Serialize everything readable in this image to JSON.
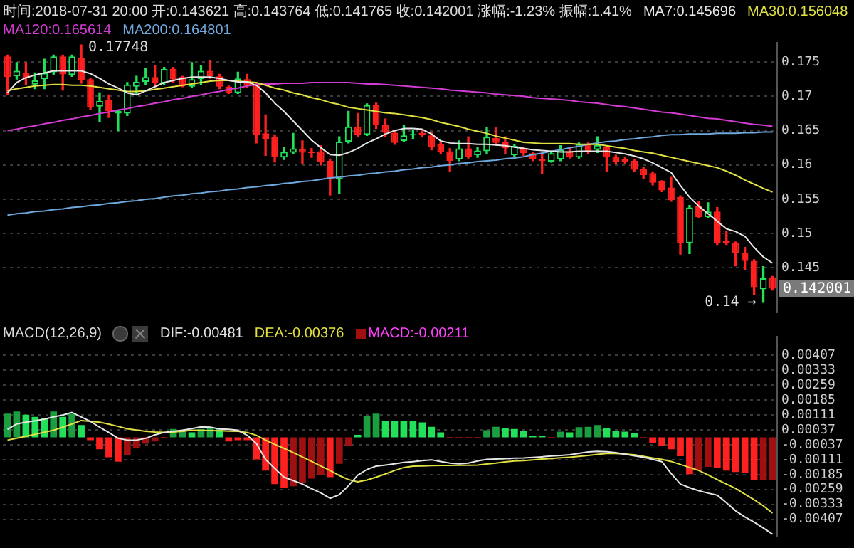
{
  "chart_data": [
    {
      "type": "candlestick",
      "title": "时间:2018-07-31 20:00 开:0.143621 高:0.143764 低:0.141765 收:0.142001 涨幅:-1.23% 振幅:1.41%",
      "categories": [
        null,
        null,
        null,
        null,
        null,
        null,
        null,
        null,
        null,
        null,
        null,
        null,
        null,
        null,
        null,
        null,
        null,
        null,
        null,
        null,
        null,
        null,
        null,
        null,
        null,
        null,
        null,
        null,
        null,
        null,
        null,
        null,
        null,
        null,
        null,
        null,
        null,
        null,
        null,
        null,
        null,
        null,
        null,
        null,
        null,
        null,
        null,
        null,
        null,
        null,
        null,
        null,
        null,
        null,
        null,
        null,
        null,
        null,
        null,
        null,
        null,
        null,
        null,
        null,
        null,
        null,
        null,
        null,
        null,
        null,
        null,
        null,
        null,
        null,
        null,
        null,
        null,
        null,
        null,
        null,
        null,
        null,
        null,
        null
      ],
      "ohlc": [
        [
          0.1758,
          0.176,
          0.1702,
          0.1728
        ],
        [
          0.1729,
          0.1749,
          0.1725,
          0.1737
        ],
        [
          0.1734,
          0.1749,
          0.1717,
          0.1726
        ],
        [
          0.1717,
          0.1734,
          0.1711,
          0.1723
        ],
        [
          0.1725,
          0.1754,
          0.1711,
          0.1734
        ],
        [
          0.1735,
          0.176,
          0.1731,
          0.1758
        ],
        [
          0.1758,
          0.176,
          0.1709,
          0.1732
        ],
        [
          0.1731,
          0.176,
          0.1729,
          0.1758
        ],
        [
          0.1756,
          0.17748,
          0.1719,
          0.1723
        ],
        [
          0.1725,
          0.1726,
          0.1681,
          0.1684
        ],
        [
          0.1685,
          0.1705,
          0.1663,
          0.1693
        ],
        [
          0.1695,
          0.1702,
          0.1669,
          0.1678
        ],
        [
          0.1675,
          0.168,
          0.165,
          0.1679
        ],
        [
          0.1675,
          0.172,
          0.1672,
          0.1717
        ],
        [
          0.1714,
          0.1729,
          0.1702,
          0.1721
        ],
        [
          0.1721,
          0.174,
          0.1717,
          0.1728
        ],
        [
          0.1728,
          0.1745,
          0.1714,
          0.172
        ],
        [
          0.1719,
          0.1742,
          0.1717,
          0.174
        ],
        [
          0.174,
          0.1742,
          0.172,
          0.1725
        ],
        [
          0.1728,
          0.1729,
          0.1714,
          0.1715
        ],
        [
          0.1714,
          0.1749,
          0.1713,
          0.1725
        ],
        [
          0.1725,
          0.1745,
          0.1717,
          0.1737
        ],
        [
          0.1737,
          0.1752,
          0.1726,
          0.1729
        ],
        [
          0.1729,
          0.1732,
          0.1711,
          0.1714
        ],
        [
          0.1714,
          0.1715,
          0.1704,
          0.1705
        ],
        [
          0.1705,
          0.1735,
          0.1704,
          0.1726
        ],
        [
          0.1725,
          0.1732,
          0.1713,
          0.1715
        ],
        [
          0.1717,
          0.1719,
          0.1632,
          0.1644
        ],
        [
          0.1646,
          0.1673,
          0.1614,
          0.1638
        ],
        [
          0.1641,
          0.1644,
          0.1604,
          0.1611
        ],
        [
          0.1611,
          0.1626,
          0.1608,
          0.1619
        ],
        [
          0.1618,
          0.1646,
          0.1617,
          0.1624
        ],
        [
          0.1623,
          0.1635,
          0.1602,
          0.1618
        ],
        [
          0.1619,
          0.1624,
          0.1611,
          0.1617
        ],
        [
          0.162,
          0.1628,
          0.16,
          0.1605
        ],
        [
          0.1606,
          0.1608,
          0.1556,
          0.1579
        ],
        [
          0.1579,
          0.1641,
          0.1559,
          0.1634
        ],
        [
          0.1634,
          0.1678,
          0.1632,
          0.1656
        ],
        [
          0.1656,
          0.1675,
          0.1641,
          0.1644
        ],
        [
          0.1644,
          0.1689,
          0.1643,
          0.1687
        ],
        [
          0.1687,
          0.169,
          0.1653,
          0.1658
        ],
        [
          0.1658,
          0.1667,
          0.1641,
          0.1647
        ],
        [
          0.1647,
          0.165,
          0.163,
          0.1632
        ],
        [
          0.1635,
          0.1658,
          0.1634,
          0.1643
        ],
        [
          0.1643,
          0.165,
          0.1638,
          0.1645
        ],
        [
          0.1647,
          0.165,
          0.1641,
          0.1643
        ],
        [
          0.1643,
          0.1647,
          0.1622,
          0.1626
        ],
        [
          0.163,
          0.1634,
          0.1617,
          0.1619
        ],
        [
          0.162,
          0.1624,
          0.159,
          0.1606
        ],
        [
          0.1608,
          0.1635,
          0.1606,
          0.1624
        ],
        [
          0.1624,
          0.1641,
          0.161,
          0.1612
        ],
        [
          0.1614,
          0.1626,
          0.1611,
          0.1621
        ],
        [
          0.162,
          0.1655,
          0.1617,
          0.1641
        ],
        [
          0.1639,
          0.1655,
          0.1629,
          0.1632
        ],
        [
          0.1634,
          0.1641,
          0.1617,
          0.1624
        ],
        [
          0.1614,
          0.163,
          0.1612,
          0.1628
        ],
        [
          0.1624,
          0.1626,
          0.1614,
          0.1617
        ],
        [
          0.1617,
          0.1618,
          0.1606,
          0.1608
        ],
        [
          0.1609,
          0.1618,
          0.1587,
          0.1606
        ],
        [
          0.1605,
          0.1618,
          0.1604,
          0.1617
        ],
        [
          0.1608,
          0.1628,
          0.1606,
          0.1622
        ],
        [
          0.162,
          0.1624,
          0.161,
          0.1611
        ],
        [
          0.1611,
          0.1632,
          0.161,
          0.163
        ],
        [
          0.163,
          0.1632,
          0.1617,
          0.162
        ],
        [
          0.1622,
          0.1641,
          0.1618,
          0.1629
        ],
        [
          0.1626,
          0.1628,
          0.159,
          0.1611
        ],
        [
          0.1612,
          0.1614,
          0.1602,
          0.1605
        ],
        [
          0.1608,
          0.1611,
          0.1602,
          0.1604
        ],
        [
          0.1606,
          0.1608,
          0.159,
          0.1593
        ],
        [
          0.1594,
          0.1596,
          0.158,
          0.1585
        ],
        [
          0.1588,
          0.159,
          0.1571,
          0.1574
        ],
        [
          0.1576,
          0.1577,
          0.1561,
          0.1563
        ],
        [
          0.1567,
          0.1582,
          0.1547,
          0.1549
        ],
        [
          0.1553,
          0.1555,
          0.147,
          0.1486
        ],
        [
          0.1486,
          0.1541,
          0.1471,
          0.1538
        ],
        [
          0.1541,
          0.1547,
          0.1523,
          0.1524
        ],
        [
          0.1524,
          0.1545,
          0.1523,
          0.1532
        ],
        [
          0.1532,
          0.1538,
          0.1484,
          0.1486
        ],
        [
          0.149,
          0.1503,
          0.1484,
          0.1486
        ],
        [
          0.1486,
          0.1488,
          0.1453,
          0.1472
        ],
        [
          0.1472,
          0.148,
          0.1447,
          0.146
        ],
        [
          0.146,
          0.1462,
          0.1411,
          0.1422
        ],
        [
          0.1419,
          0.1452,
          0.14,
          0.1435
        ],
        [
          0.143621,
          0.143764,
          0.141765,
          0.142001
        ]
      ],
      "series": [
        {
          "type": "line",
          "name": "MA7:0.145696",
          "color": "#e6e6e6",
          "values": [
            0.1705,
            0.172,
            0.1727,
            0.1731,
            0.1734,
            0.1737,
            0.1737,
            0.1737,
            0.1737,
            0.1733,
            0.1726,
            0.1718,
            0.1712,
            0.1705,
            0.1702,
            0.1708,
            0.1714,
            0.172,
            0.1723,
            0.1726,
            0.1728,
            0.1728,
            0.1728,
            0.1726,
            0.1723,
            0.1721,
            0.1721,
            0.1716,
            0.1705,
            0.169,
            0.1678,
            0.1664,
            0.165,
            0.1636,
            0.1625,
            0.1615,
            0.1614,
            0.1618,
            0.1624,
            0.1632,
            0.1638,
            0.1645,
            0.165,
            0.1653,
            0.1653,
            0.1652,
            0.1645,
            0.1635,
            0.1632,
            0.1631,
            0.1631,
            0.163,
            0.163,
            0.1629,
            0.1628,
            0.1626,
            0.1624,
            0.1622,
            0.1621,
            0.162,
            0.1619,
            0.1619,
            0.162,
            0.162,
            0.162,
            0.162,
            0.1618,
            0.1616,
            0.1613,
            0.1609,
            0.1603,
            0.1596,
            0.1589,
            0.157,
            0.1553,
            0.154,
            0.1529,
            0.1518,
            0.1507,
            0.1503,
            0.1496,
            0.148,
            0.1466,
            0.145696
          ]
        },
        {
          "type": "line",
          "name": "MA30:0.156048",
          "color": "#e0e040",
          "values": [
            0.1708,
            0.1711,
            0.1713,
            0.1715,
            0.1716,
            0.1717,
            0.1717,
            0.1716,
            0.1716,
            0.1715,
            0.1713,
            0.1711,
            0.1709,
            0.1707,
            0.1707,
            0.1708,
            0.171,
            0.1712,
            0.1714,
            0.1716,
            0.1718,
            0.172,
            0.1722,
            0.1723,
            0.1723,
            0.1722,
            0.1721,
            0.172,
            0.1716,
            0.1712,
            0.1709,
            0.1705,
            0.1702,
            0.1698,
            0.1695,
            0.1691,
            0.1688,
            0.1684,
            0.1682,
            0.168,
            0.1678,
            0.1676,
            0.1675,
            0.1673,
            0.1671,
            0.1669,
            0.1666,
            0.1662,
            0.1659,
            0.1656,
            0.1652,
            0.1649,
            0.1646,
            0.1642,
            0.1639,
            0.1636,
            0.1633,
            0.1632,
            0.1631,
            0.1631,
            0.1631,
            0.1631,
            0.163,
            0.163,
            0.163,
            0.1628,
            0.1626,
            0.1624,
            0.1621,
            0.1619,
            0.1617,
            0.1614,
            0.1611,
            0.1608,
            0.1605,
            0.1602,
            0.1599,
            0.1596,
            0.1591,
            0.1585,
            0.1578,
            0.1572,
            0.1566,
            0.156048
          ]
        },
        {
          "type": "line",
          "name": "MA120:0.165614",
          "color": "#d23cd2",
          "values": [
            0.165,
            0.1652,
            0.1655,
            0.1657,
            0.166,
            0.1662,
            0.1665,
            0.1667,
            0.167,
            0.1672,
            0.1675,
            0.1677,
            0.168,
            0.1682,
            0.1685,
            0.1687,
            0.169,
            0.1692,
            0.1695,
            0.1697,
            0.17,
            0.1702,
            0.1705,
            0.1707,
            0.171,
            0.1712,
            0.1715,
            0.1717,
            0.1718,
            0.1718,
            0.1719,
            0.1719,
            0.1719,
            0.172,
            0.172,
            0.172,
            0.172,
            0.172,
            0.1719,
            0.1718,
            0.1718,
            0.1717,
            0.1716,
            0.1715,
            0.1714,
            0.1713,
            0.1712,
            0.1711,
            0.1709,
            0.1708,
            0.1707,
            0.1706,
            0.1705,
            0.1703,
            0.1702,
            0.1701,
            0.17,
            0.1698,
            0.1697,
            0.1696,
            0.1695,
            0.1694,
            0.1692,
            0.1691,
            0.169,
            0.1688,
            0.1686,
            0.1685,
            0.1683,
            0.1681,
            0.1679,
            0.1677,
            0.1676,
            0.1674,
            0.1672,
            0.167,
            0.1668,
            0.1667,
            0.1665,
            0.1663,
            0.1661,
            0.1659,
            0.1658,
            0.165614
          ]
        },
        {
          "type": "line",
          "name": "MA200:0.164801",
          "color": "#6fa8dc",
          "values": [
            0.1527,
            0.1529,
            0.153,
            0.1532,
            0.1533,
            0.1535,
            0.1536,
            0.1538,
            0.1539,
            0.1541,
            0.1542,
            0.1544,
            0.1545,
            0.1547,
            0.1548,
            0.155,
            0.1551,
            0.1553,
            0.1555,
            0.1556,
            0.1558,
            0.1559,
            0.1561,
            0.1562,
            0.1564,
            0.1565,
            0.1567,
            0.1568,
            0.157,
            0.1571,
            0.1573,
            0.1574,
            0.1576,
            0.1577,
            0.1579,
            0.1581,
            0.1582,
            0.1584,
            0.1585,
            0.1587,
            0.1588,
            0.159,
            0.1591,
            0.1593,
            0.1594,
            0.1596,
            0.1597,
            0.1599,
            0.16,
            0.1602,
            0.1603,
            0.1605,
            0.1606,
            0.1607,
            0.1609,
            0.161,
            0.1612,
            0.1615,
            0.1617,
            0.162,
            0.1622,
            0.1625,
            0.1627,
            0.163,
            0.1632,
            0.1634,
            0.1635,
            0.1637,
            0.1638,
            0.164,
            0.1641,
            0.1643,
            0.1644,
            0.1644,
            0.1645,
            0.1645,
            0.1645,
            0.1646,
            0.1646,
            0.1646,
            0.1647,
            0.1647,
            0.1648,
            0.164801
          ]
        }
      ],
      "ylim": [
        0.1385,
        0.1778
      ],
      "yticks": [
        0.145,
        0.15,
        0.155,
        0.16,
        0.165,
        0.17,
        0.175
      ],
      "grid": "y",
      "legend": "top left",
      "annotations": [
        "0.17748",
        "0.14 →",
        "0.142001"
      ]
    },
    {
      "type": "bar",
      "title": "MACD(12,26,9)",
      "categories": [
        null,
        null,
        null,
        null,
        null,
        null,
        null,
        null,
        null,
        null,
        null,
        null,
        null,
        null,
        null,
        null,
        null,
        null,
        null,
        null,
        null,
        null,
        null,
        null,
        null,
        null,
        null,
        null,
        null,
        null,
        null,
        null,
        null,
        null,
        null,
        null,
        null,
        null,
        null,
        null,
        null,
        null,
        null,
        null,
        null,
        null,
        null,
        null,
        null,
        null,
        null,
        null,
        null,
        null,
        null,
        null,
        null,
        null,
        null,
        null,
        null,
        null,
        null,
        null,
        null,
        null,
        null,
        null,
        null,
        null,
        null,
        null,
        null,
        null,
        null,
        null,
        null,
        null,
        null,
        null,
        null,
        null,
        null,
        null
      ],
      "series": [
        {
          "type": "line",
          "name": "DIF:-0.00481",
          "color": "#e6e6e6",
          "values": [
            0.00039,
            0.00066,
            0.00075,
            0.00082,
            0.0009,
            0.00101,
            0.0011,
            0.00123,
            0.00101,
            0.00079,
            0.0005,
            0.00024,
            -5e-05,
            -0.00014,
            -0.00014,
            -5e-05,
            0.00012,
            0.00024,
            0.0003,
            0.00035,
            0.00043,
            0.00052,
            0.0005,
            0.00041,
            0.00039,
            0.00035,
            0.0001,
            -0.0003,
            -0.0011,
            -0.00155,
            -0.00198,
            -0.00215,
            -0.00232,
            -0.00255,
            -0.00276,
            -0.00303,
            -0.00285,
            -0.0024,
            -0.00188,
            -0.0016,
            -0.00143,
            -0.00138,
            -0.00132,
            -0.00125,
            -0.00121,
            -0.00116,
            -0.00112,
            -0.0012,
            -0.00128,
            -0.00132,
            -0.00128,
            -0.00118,
            -0.0011,
            -0.00108,
            -0.00106,
            -0.00104,
            -0.00103,
            -0.001,
            -0.00097,
            -0.00093,
            -0.0009,
            -0.00087,
            -0.0008,
            -0.00073,
            -0.0007,
            -0.00072,
            -0.00076,
            -0.00084,
            -0.00092,
            -0.00099,
            -0.0011,
            -0.00121,
            -0.0018,
            -0.00232,
            -0.0025,
            -0.00265,
            -0.00277,
            -0.00287,
            -0.00325,
            -0.00365,
            -0.00395,
            -0.00421,
            -0.0045,
            -0.00481
          ]
        },
        {
          "type": "line",
          "name": "DEA:-0.00376",
          "color": "#e0e040",
          "values": [
            -0.00014,
            -5e-05,
            5e-05,
            0.00015,
            0.00025,
            0.00035,
            0.0005,
            0.00066,
            0.00083,
            0.00079,
            0.00075,
            0.00065,
            0.00054,
            0.00042,
            0.00036,
            0.0003,
            0.00026,
            0.00024,
            0.00026,
            0.0003,
            0.00035,
            0.00034,
            0.00033,
            0.00032,
            0.00031,
            0.0003,
            0.00024,
            0.0001,
            -0.00014,
            -0.00035,
            -0.00055,
            -0.00076,
            -0.00098,
            -0.0012,
            -0.00143,
            -0.00165,
            -0.0019,
            -0.0021,
            -0.00221,
            -0.00212,
            -0.00198,
            -0.00182,
            -0.00165,
            -0.0015,
            -0.00143,
            -0.00142,
            -0.00141,
            -0.0014,
            -0.0014,
            -0.00139,
            -0.00139,
            -0.00138,
            -0.00133,
            -0.00128,
            -0.00122,
            -0.00118,
            -0.00116,
            -0.00112,
            -0.00108,
            -0.00105,
            -0.00102,
            -0.00099,
            -0.00095,
            -0.0009,
            -0.00085,
            -0.00081,
            -0.00081,
            -0.00083,
            -0.00087,
            -0.00095,
            -0.00103,
            -0.0011,
            -0.0012,
            -0.00135,
            -0.0015,
            -0.00165,
            -0.00187,
            -0.0021,
            -0.00232,
            -0.00254,
            -0.00282,
            -0.0031,
            -0.0034,
            -0.00376
          ]
        },
        {
          "type": "bar",
          "name": "MACD:-0.00211",
          "values": [
            0.00117,
            0.00128,
            0.00112,
            0.00101,
            0.00097,
            0.00128,
            0.00101,
            0.00117,
            0.00061,
            -0.00014,
            -0.00059,
            -0.00099,
            -0.00121,
            -0.00087,
            -0.00054,
            -0.00032,
            -0.00021,
            -5e-05,
            0.00041,
            0.00035,
            0.00024,
            0.00041,
            0.0005,
            0.00039,
            -0.00021,
            -0.00014,
            -0.00014,
            -0.0011,
            -0.00165,
            -0.00232,
            -0.0025,
            -0.00243,
            -0.00227,
            -0.00205,
            -0.00187,
            -0.00198,
            -0.00132,
            -0.00043,
            0.00012,
            0.00106,
            0.00117,
            0.00083,
            0.00079,
            0.00079,
            0.00079,
            0.00074,
            0.00052,
            0.00024,
            -5e-05,
            -3e-05,
            -3e-05,
            -5e-05,
            0.00035,
            0.00052,
            0.00046,
            0.00041,
            0.0003,
            8e-05,
            8e-05,
            -3e-05,
            0.00028,
            0.00024,
            0.0005,
            0.00052,
            0.00061,
            0.00044,
            0.0003,
            0.00028,
            0.00021,
            -5e-05,
            -0.00028,
            -0.00043,
            -0.00059,
            -0.00094,
            -0.00183,
            -0.00165,
            -0.00147,
            -0.00154,
            -0.00165,
            -0.00172,
            -0.00178,
            -0.00214,
            -0.00214,
            -0.00211
          ],
          "colors": [
            "#1a9e40",
            "#1a9e40",
            "#22e05a",
            "#22e05a",
            "#22e05a",
            "#1a9e40",
            "#22e05a",
            "#1a9e40",
            "#22e05a",
            "#ff2020",
            "#ff2020",
            "#ff2020",
            "#ff2020",
            "#a01010",
            "#a01010",
            "#a01010",
            "#a01010",
            "#ff2020",
            "#1a9e40",
            "#1a9e40",
            "#22e05a",
            "#1a9e40",
            "#1a9e40",
            "#22e05a",
            "#ff2020",
            "#ff2020",
            "#ff2020",
            "#ff2020",
            "#ff2020",
            "#ff2020",
            "#ff2020",
            "#a01010",
            "#a01010",
            "#a01010",
            "#a01010",
            "#ff2020",
            "#a01010",
            "#a01010",
            "#22e05a",
            "#1a9e40",
            "#1a9e40",
            "#22e05a",
            "#22e05a",
            "#22e05a",
            "#22e05a",
            "#22e05a",
            "#22e05a",
            "#22e05a",
            "#ff2020",
            "#ff2020",
            "#ff2020",
            "#ff2020",
            "#1a9e40",
            "#1a9e40",
            "#22e05a",
            "#22e05a",
            "#22e05a",
            "#22e05a",
            "#22e05a",
            "#ff2020",
            "#1a9e40",
            "#22e05a",
            "#1a9e40",
            "#1a9e40",
            "#1a9e40",
            "#22e05a",
            "#22e05a",
            "#22e05a",
            "#22e05a",
            "#ff2020",
            "#ff2020",
            "#ff2020",
            "#ff2020",
            "#ff2020",
            "#ff2020",
            "#a01010",
            "#a01010",
            "#ff2020",
            "#ff2020",
            "#ff2020",
            "#ff2020",
            "#ff2020",
            "#a01010",
            "#a01010"
          ]
        }
      ],
      "ylim": [
        -0.0049,
        0.005
      ],
      "yticks": [
        0.00407,
        0.00333,
        0.00259,
        0.00185,
        0.00111,
        0.00037,
        -0.00037,
        -0.00111,
        -0.00185,
        -0.00259,
        -0.00333,
        -0.00407
      ],
      "grid": "y",
      "legend": "top left"
    }
  ]
}
